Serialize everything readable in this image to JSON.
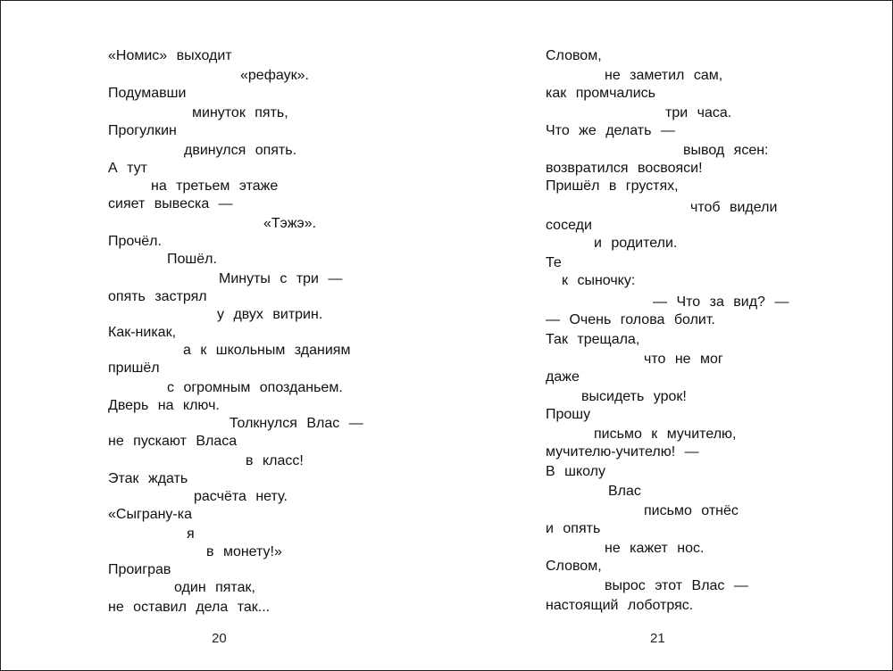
{
  "left_page": {
    "number": "20",
    "lines": [
      "«Номис» выходит",
      "«рефаук».",
      "Подумавши",
      "минуток пять,",
      "Прогулкин",
      "двинулся опять.",
      "А тут",
      "на третьем этаже",
      "сияет вывеска —",
      "«Тэжэ».",
      "Прочёл.",
      "Пошёл.",
      "Минуты с три —",
      "опять застрял",
      "у двух витрин.",
      "Как-никак,",
      "а к школьным зданиям",
      "пришёл",
      "с огромным опозданьем.",
      "Дверь на ключ.",
      "Толкнулся Влас —",
      "не пускают Власа",
      "в класс!",
      "Этак ждать",
      "расчёта нету.",
      "«Сыграну-ка",
      "я",
      "в монету!»",
      "Проиграв",
      "один пятак,",
      "не оставил дела так..."
    ]
  },
  "right_page": {
    "number": "21",
    "lines": [
      "Словом,",
      "не заметил сам,",
      "как промчались",
      "три часа.",
      "Что же делать —",
      "вывод ясен:",
      "возвратился восвояси!",
      "Пришёл в грустях,",
      "чтоб видели",
      "соседи",
      "и родители.",
      "Те",
      "к сыночку:",
      "— Что за вид? —",
      "— Очень голова болит.",
      "Так трещала,",
      "что не мог",
      "даже",
      "высидеть урок!",
      "Прошу",
      "письмо к мучителю,",
      "мучителю-учителю! —",
      "В школу",
      "Влас",
      "письмо отнёс",
      "и опять",
      "не кажет нос.",
      "Словом,",
      "вырос этот Влас —",
      "настоящий лоботряс."
    ]
  }
}
